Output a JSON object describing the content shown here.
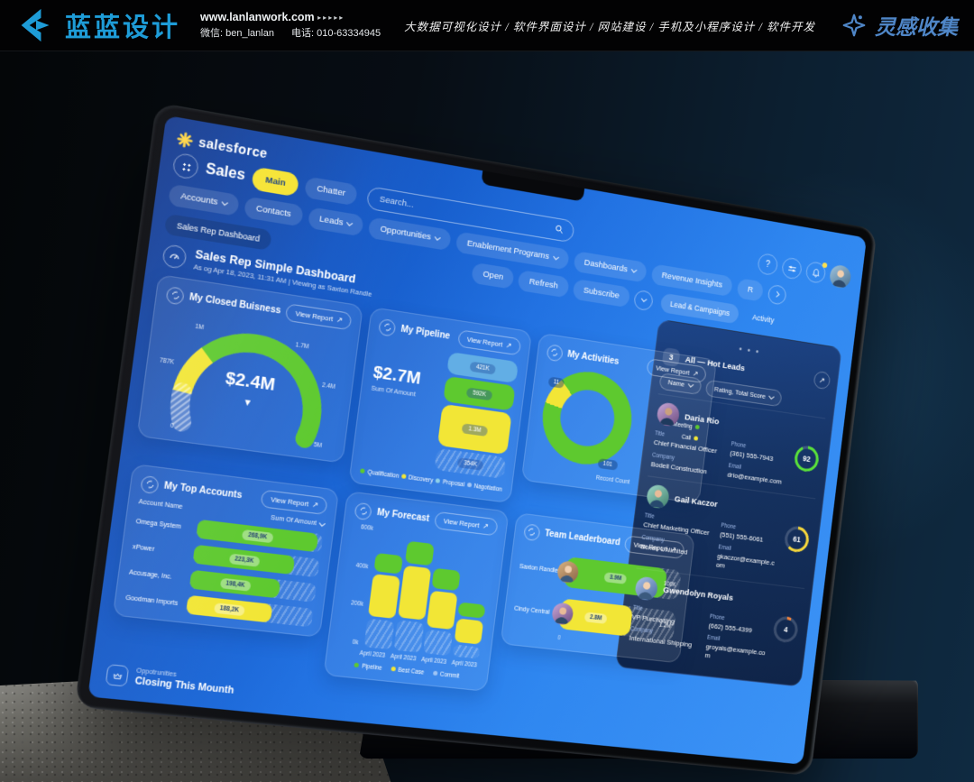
{
  "banner": {
    "brand": "蓝蓝设计",
    "website": "www.lanlanwork.com",
    "arrows": "▸▸▸▸▸",
    "wechat": "微信: ben_lanlan",
    "phone": "电话: 010-63334945",
    "services": "大数据可视化设计 / 软件界面设计 / 网站建设 / 手机及小程序设计 / 软件开发",
    "collect_label": "灵感收集"
  },
  "palette": {
    "banner_blue": "#1e9cd7",
    "screen_blue": "#2f87f0",
    "green": "#5ec92f",
    "yellow": "#f2e636",
    "funnel_blue": "#62aee5",
    "panel_navy": "#16386e",
    "main_pill_yellow": "#f5e32e",
    "ring_green": "#59e03a",
    "ring_yellow": "#f3d53c",
    "ring_orange": "#f0823c"
  },
  "dashboard": {
    "brand": "salesforce",
    "header": {
      "app_title": "Sales",
      "main_tab": "Main",
      "chatter_tab": "Chatter",
      "search_placeholder": "Search...",
      "help_icon": "?"
    },
    "nav": {
      "items": [
        "Accounts",
        "Contacts",
        "Leads",
        "Opportunities",
        "Enablement Programs",
        "Dashboards",
        "Revenue Insights",
        "R"
      ]
    },
    "toolbar": {
      "dashboard_tab": "Sales Rep Dashboard",
      "open": "Open",
      "refresh": "Refresh",
      "subscribe": "Subscribe"
    },
    "page": {
      "title": "Sales Rep Simple Dashboard",
      "subtitle": "As og Apr 18, 2023, 11:31 AM | Viewing as Saxton Randle"
    },
    "view_report": "View Report",
    "arrow_up_right": "↗",
    "dots_menu": "• • •",
    "pointer_glyph": "▼",
    "cards": {
      "opportunities": {
        "label": "Oppotrunities",
        "title": "Closing This Mounth"
      }
    },
    "lead_panel": {
      "tabs": [
        "Lead & Campaigns",
        "Activity"
      ],
      "count": "3",
      "list_title": "All — Hot Leads",
      "filters": [
        "Name",
        "Rating, Total Score"
      ],
      "field_labels": {
        "title": "Title",
        "phone": "Phone",
        "company": "Company",
        "email": "Email"
      },
      "contacts": [
        {
          "name": "Daria Rio",
          "title": "Chief Financial Officer",
          "phone": "(361) 555-7943",
          "company": "Bodell Construction",
          "email": "drio@example.com",
          "score": 92,
          "ring": "green"
        },
        {
          "name": "Gail Kaczor",
          "title": "Chief Marketing Officer",
          "phone": "(551) 555-6061",
          "company": "Boxes Unlimited",
          "email": "gkaczor@example.com",
          "score": 61,
          "ring": "yellow"
        },
        {
          "name": "Gwendolyn Royals",
          "title": "VP Purchasing",
          "phone": "(662) 555-4399",
          "company": "International Shipping",
          "email": "groyals@example.com",
          "score": 4,
          "ring": "orange"
        }
      ]
    }
  },
  "chart_data": [
    {
      "id": "closed_business_gauge",
      "type": "gauge",
      "title": "My Closed Buisness",
      "value_label": "$2.4M",
      "value_millions": 2.4,
      "axis_ticks": [
        "0",
        "787K",
        "1M",
        "1.7M",
        "2.4M",
        "5M"
      ],
      "segments": [
        {
          "name": "hatched",
          "pct": 12
        },
        {
          "name": "yellow",
          "pct": 18
        },
        {
          "name": "green",
          "pct": 70
        }
      ]
    },
    {
      "id": "pipeline_funnel",
      "type": "funnel",
      "title": "My Pipeline",
      "total_label": "$2.7M",
      "total_caption": "Sum Of Amount",
      "stages": [
        {
          "label": "421K",
          "value_k": 421,
          "color": "blue"
        },
        {
          "label": "592K",
          "value_k": 592,
          "color": "green"
        },
        {
          "label": "1.3M",
          "value_k": 1300,
          "color": "yellow"
        },
        {
          "label": "354K",
          "value_k": 354,
          "color": "hatched"
        }
      ],
      "legend": [
        "Qualification",
        "Discovery",
        "Proposal",
        "Nagotiation"
      ]
    },
    {
      "id": "activities_donut",
      "type": "pie",
      "title": "My Activities",
      "caption": "Record Count",
      "slices": [
        {
          "name": "Meeting",
          "value": 101,
          "label": "101",
          "color": "green"
        },
        {
          "name": "Call",
          "value": 11,
          "label": "11",
          "color": "yellow"
        }
      ],
      "legend": [
        "Meeting",
        "Call"
      ]
    },
    {
      "id": "top_accounts",
      "type": "bar",
      "orientation": "horizontal",
      "title": "My Top Accounts",
      "columns": [
        "Account Name",
        "Sum Of Amount"
      ],
      "categories": [
        "Omega System",
        "xPower",
        "Accusage, Inc.",
        "Goodman Imports"
      ],
      "values_k": [
        268.9,
        223.3,
        198.4,
        188.2
      ],
      "value_labels": [
        "268,9K",
        "223,3K",
        "198,4K",
        "188,2K"
      ],
      "colors": [
        "green",
        "green",
        "green",
        "yellow"
      ],
      "scale_max_k": 280
    },
    {
      "id": "forecast",
      "type": "bar",
      "stacked": true,
      "title": "My Forecast",
      "categories": [
        "April 2023",
        "April 2023",
        "April 2023",
        "April 2023"
      ],
      "yticks": [
        "0k",
        "200k",
        "400k",
        "600k"
      ],
      "ylim_k": [
        0,
        600
      ],
      "series": [
        {
          "name": "Pipeline",
          "color": "green",
          "values_k": [
            90,
            110,
            100,
            70
          ]
        },
        {
          "name": "Best Case",
          "color": "yellow",
          "values_k": [
            210,
            260,
            180,
            120
          ]
        },
        {
          "name": "Commit",
          "color": "hatched",
          "values_k": [
            140,
            150,
            120,
            60
          ]
        }
      ]
    },
    {
      "id": "leaderboard",
      "type": "bar",
      "orientation": "horizontal",
      "title": "Team Leaderboard",
      "categories": [
        "Saxton Randle",
        "Cindy Central"
      ],
      "values_m": [
        3.9,
        2.8
      ],
      "value_labels": [
        "3.9M",
        "2.8M"
      ],
      "tail_labels": [
        "100K",
        "1.2M"
      ],
      "colors": [
        "green",
        "yellow"
      ],
      "axis_zero": "0",
      "scale_max_m": 4.5
    }
  ]
}
